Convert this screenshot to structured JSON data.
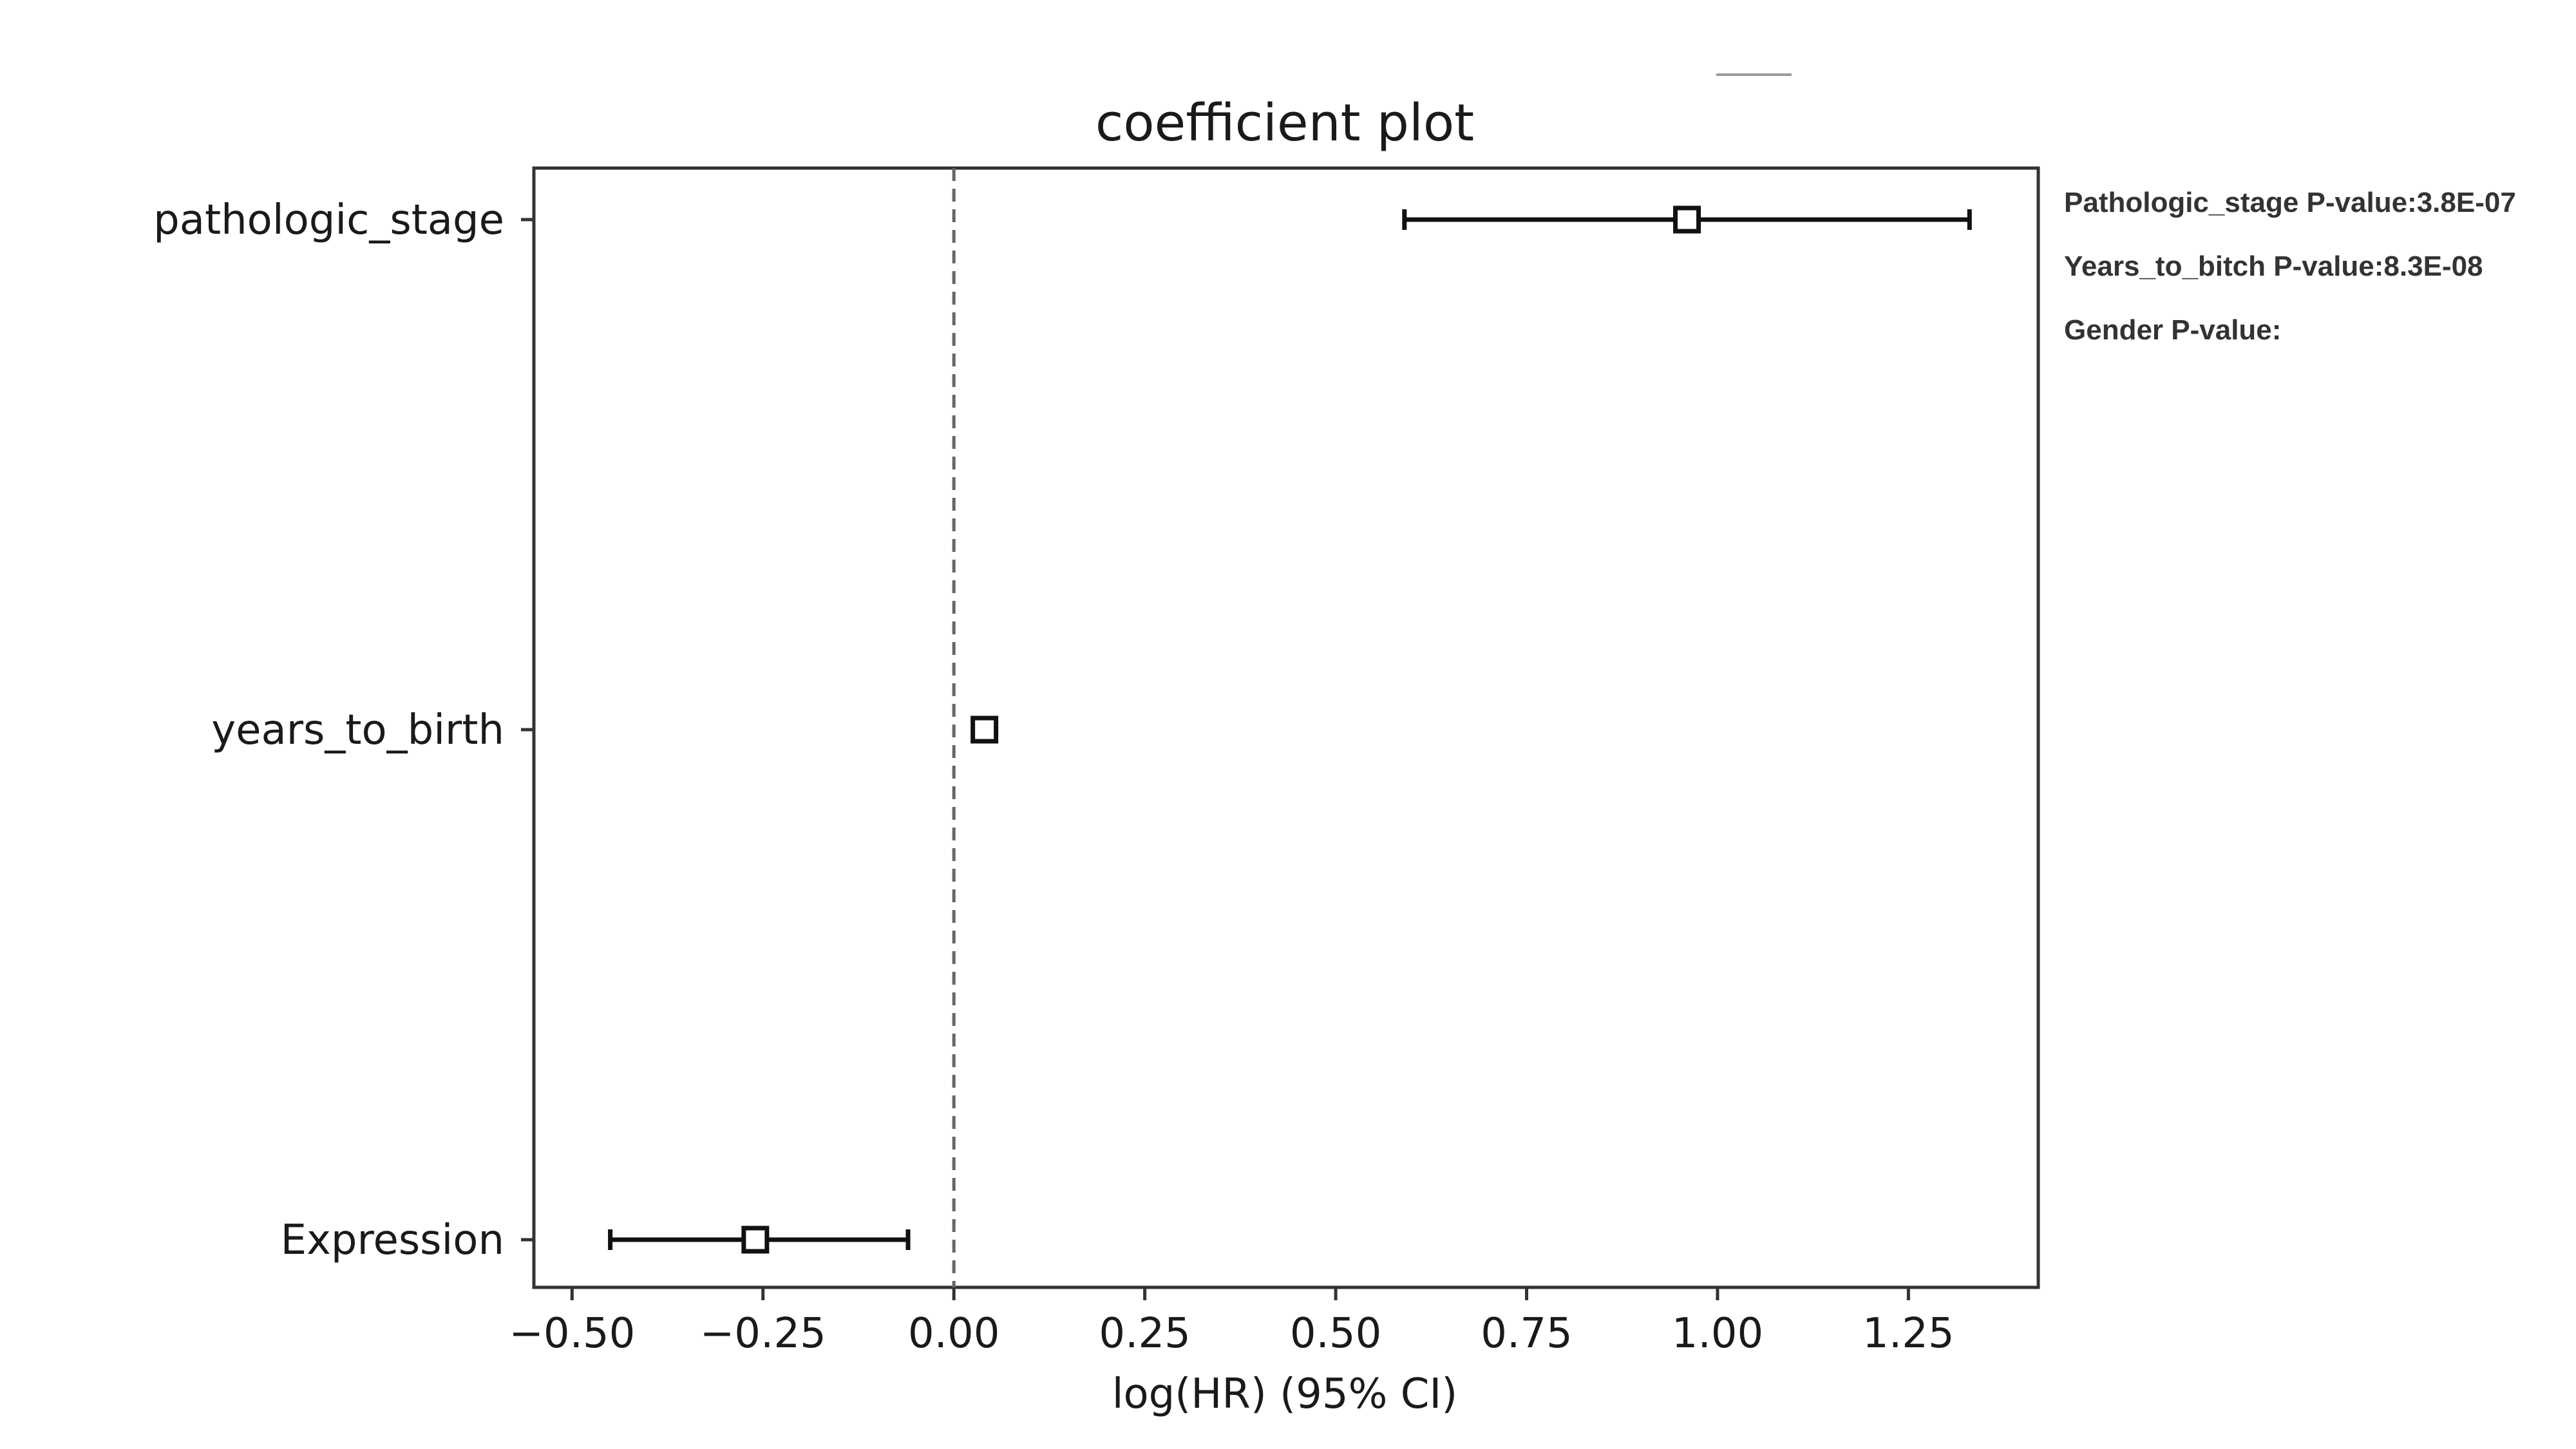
{
  "chart_data": {
    "type": "forest",
    "title": "coefficient plot",
    "xlabel": "log(HR) (95% CI)",
    "ylabel": "",
    "xlim": [
      -0.55,
      1.42
    ],
    "xticks": [
      -0.5,
      -0.25,
      0.0,
      0.25,
      0.5,
      0.75,
      1.0,
      1.25
    ],
    "xtick_labels": [
      "−0.50",
      "−0.25",
      "0.00",
      "0.25",
      "0.50",
      "0.75",
      "1.00",
      "1.25"
    ],
    "reference_line": 0.0,
    "rows": [
      {
        "label": "pathologic_stage",
        "coef": 0.96,
        "lower": 0.59,
        "upper": 1.33
      },
      {
        "label": "years_to_birth",
        "coef": 0.04,
        "lower": 0.04,
        "upper": 0.04
      },
      {
        "label": "Expression",
        "coef": -0.26,
        "lower": -0.45,
        "upper": -0.06
      }
    ]
  },
  "annotations": [
    "Pathologic_stage P-value:3.8E-07",
    "Years_to_bitch P-value:8.3E-08",
    "Gender P-value:"
  ]
}
